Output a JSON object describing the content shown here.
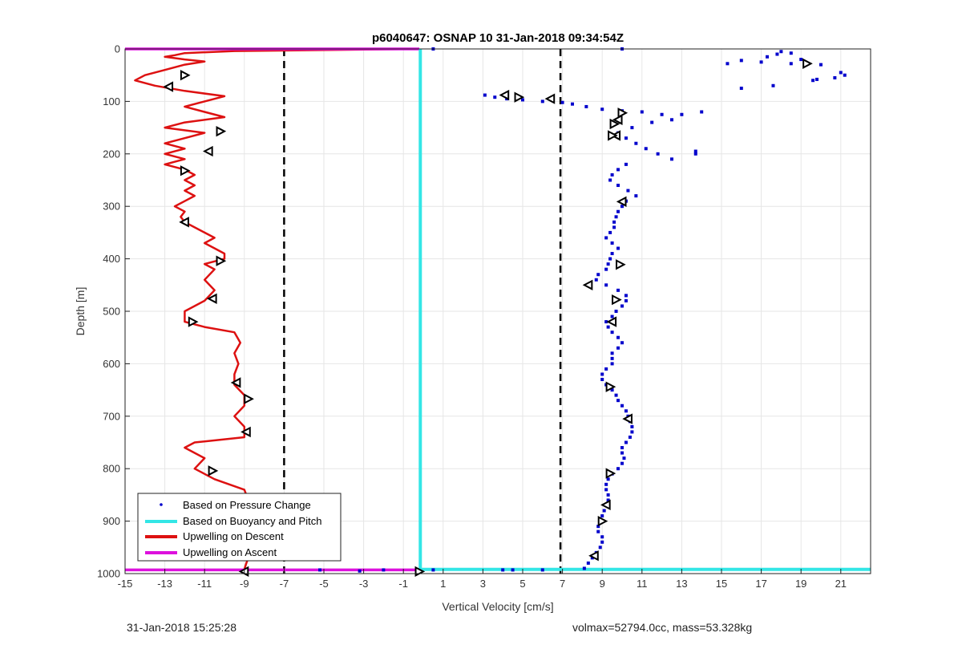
{
  "footer": {
    "left": "31-Jan-2018 15:25:28",
    "right": "volmax=52794.0cc, mass=53.328kg"
  },
  "chart_data": {
    "type": "scatter",
    "title": "p6040647: OSNAP 10 31-Jan-2018 09:34:54Z",
    "xlabel": "Vertical Velocity [cm/s]",
    "ylabel": "Depth [m]",
    "xlim": [
      -15,
      22.5
    ],
    "ylim": [
      1000,
      0
    ],
    "y_reversed": true,
    "grid": true,
    "xticks": [
      -15,
      -13,
      -11,
      -9,
      -7,
      -5,
      -3,
      -1,
      1,
      3,
      5,
      7,
      9,
      11,
      13,
      15,
      17,
      19,
      21
    ],
    "yticks": [
      0,
      100,
      200,
      300,
      400,
      500,
      600,
      700,
      800,
      900,
      1000
    ],
    "legend_position": "bottom-left",
    "legend": [
      {
        "label": "Based on Pressure Change",
        "color": "#0000cc",
        "style": "dot"
      },
      {
        "label": "Based on Buoyancy and Pitch",
        "color": "#33e6e6",
        "style": "line"
      },
      {
        "label": "Upwelling on Descent",
        "color": "#dd1111",
        "style": "line"
      },
      {
        "label": "Upwelling on Ascent",
        "color": "#dd11dd",
        "style": "line"
      }
    ],
    "reference_lines_x": [
      -7,
      6.9
    ],
    "series": [
      {
        "name": "Upwelling on Descent",
        "color": "#dd1111",
        "points": [
          [
            -0.2,
            0
          ],
          [
            -9.5,
            4
          ],
          [
            -12,
            8
          ],
          [
            -12.5,
            12
          ],
          [
            -13,
            15
          ],
          [
            -12,
            20
          ],
          [
            -11,
            24
          ],
          [
            -12,
            30
          ],
          [
            -13,
            40
          ],
          [
            -14,
            50
          ],
          [
            -14.5,
            60
          ],
          [
            -13.5,
            70
          ],
          [
            -12,
            80
          ],
          [
            -10,
            90
          ],
          [
            -11,
            100
          ],
          [
            -12,
            110
          ],
          [
            -11,
            120
          ],
          [
            -10,
            130
          ],
          [
            -12,
            140
          ],
          [
            -13,
            150
          ],
          [
            -11,
            160
          ],
          [
            -12,
            170
          ],
          [
            -13,
            180
          ],
          [
            -12,
            190
          ],
          [
            -13,
            200
          ],
          [
            -12,
            210
          ],
          [
            -13,
            220
          ],
          [
            -12,
            230
          ],
          [
            -11.5,
            240
          ],
          [
            -12,
            250
          ],
          [
            -11.5,
            260
          ],
          [
            -12,
            270
          ],
          [
            -11.5,
            280
          ],
          [
            -12,
            290
          ],
          [
            -12.5,
            300
          ],
          [
            -12,
            310
          ],
          [
            -12.2,
            320
          ],
          [
            -12,
            330
          ],
          [
            -11.5,
            340
          ],
          [
            -11,
            350
          ],
          [
            -10.5,
            360
          ],
          [
            -11,
            370
          ],
          [
            -10.5,
            380
          ],
          [
            -10,
            390
          ],
          [
            -10,
            400
          ],
          [
            -11,
            410
          ],
          [
            -10.5,
            420
          ],
          [
            -11,
            440
          ],
          [
            -10.5,
            460
          ],
          [
            -11,
            480
          ],
          [
            -12,
            500
          ],
          [
            -12,
            520
          ],
          [
            -11,
            530
          ],
          [
            -9.5,
            540
          ],
          [
            -9.2,
            560
          ],
          [
            -9.5,
            580
          ],
          [
            -9.3,
            600
          ],
          [
            -9.5,
            620
          ],
          [
            -9.5,
            640
          ],
          [
            -9,
            660
          ],
          [
            -9,
            680
          ],
          [
            -9.5,
            700
          ],
          [
            -9,
            720
          ],
          [
            -9,
            740
          ],
          [
            -11.5,
            750
          ],
          [
            -12,
            760
          ],
          [
            -11,
            780
          ],
          [
            -11.5,
            800
          ],
          [
            -10.5,
            820
          ],
          [
            -9,
            840
          ],
          [
            -8.8,
            860
          ],
          [
            -8.8,
            880
          ],
          [
            -8.7,
            900
          ],
          [
            -8.6,
            920
          ],
          [
            -8.6,
            940
          ],
          [
            -8.7,
            960
          ],
          [
            -8.9,
            980
          ],
          [
            -9,
            992
          ]
        ],
        "markers": [
          [
            -12,
            50
          ],
          [
            -12.8,
            72
          ],
          [
            -10.2,
            157
          ],
          [
            -10.8,
            195
          ],
          [
            -12,
            232
          ],
          [
            -12,
            330
          ],
          [
            -10.2,
            404
          ],
          [
            -10.6,
            476
          ],
          [
            -11.6,
            520
          ],
          [
            -9.4,
            636
          ],
          [
            -8.8,
            667
          ],
          [
            -8.9,
            730
          ],
          [
            -10.6,
            804
          ],
          [
            -9,
            996
          ]
        ]
      },
      {
        "name": "Based on Pressure Change",
        "color": "#0000cc",
        "points": [
          [
            0.5,
            0
          ],
          [
            10,
            0
          ],
          [
            18,
            5
          ],
          [
            18.5,
            8
          ],
          [
            17.8,
            10
          ],
          [
            17.3,
            15
          ],
          [
            19,
            20
          ],
          [
            16,
            22
          ],
          [
            17,
            25
          ],
          [
            18.5,
            28
          ],
          [
            20,
            30
          ],
          [
            21.2,
            50
          ],
          [
            21,
            45
          ],
          [
            20.7,
            55
          ],
          [
            19.8,
            58
          ],
          [
            19.6,
            60
          ],
          [
            15.3,
            28
          ],
          [
            16,
            75
          ],
          [
            17.6,
            70
          ],
          [
            3.1,
            88
          ],
          [
            3.6,
            92
          ],
          [
            4.2,
            95
          ],
          [
            5,
            97
          ],
          [
            6,
            100
          ],
          [
            7,
            102
          ],
          [
            7.5,
            105
          ],
          [
            8.2,
            110
          ],
          [
            9,
            115
          ],
          [
            10,
            118
          ],
          [
            11,
            120
          ],
          [
            12,
            125
          ],
          [
            13,
            125
          ],
          [
            14,
            120
          ],
          [
            12.5,
            135
          ],
          [
            11.5,
            140
          ],
          [
            10.5,
            150
          ],
          [
            9.8,
            160
          ],
          [
            10.2,
            170
          ],
          [
            10.7,
            180
          ],
          [
            11.2,
            190
          ],
          [
            11.8,
            200
          ],
          [
            12.5,
            210
          ],
          [
            13.7,
            195
          ],
          [
            13.7,
            200
          ],
          [
            10.2,
            220
          ],
          [
            9.8,
            230
          ],
          [
            9.5,
            240
          ],
          [
            9.4,
            250
          ],
          [
            9.8,
            260
          ],
          [
            10.3,
            270
          ],
          [
            10.7,
            280
          ],
          [
            10.2,
            290
          ],
          [
            10,
            300
          ],
          [
            9.8,
            310
          ],
          [
            9.7,
            320
          ],
          [
            9.6,
            330
          ],
          [
            9.6,
            340
          ],
          [
            9.4,
            350
          ],
          [
            9.2,
            360
          ],
          [
            9.5,
            370
          ],
          [
            9.8,
            380
          ],
          [
            9.5,
            390
          ],
          [
            9.4,
            400
          ],
          [
            9.3,
            410
          ],
          [
            9.2,
            420
          ],
          [
            8.8,
            430
          ],
          [
            8.7,
            440
          ],
          [
            9.2,
            450
          ],
          [
            9.8,
            460
          ],
          [
            10.2,
            470
          ],
          [
            10.2,
            480
          ],
          [
            10,
            490
          ],
          [
            9.7,
            500
          ],
          [
            9.5,
            510
          ],
          [
            9.2,
            520
          ],
          [
            9.3,
            530
          ],
          [
            9.5,
            540
          ],
          [
            9.8,
            550
          ],
          [
            10,
            560
          ],
          [
            9.8,
            570
          ],
          [
            9.5,
            580
          ],
          [
            9.5,
            590
          ],
          [
            9.5,
            600
          ],
          [
            9.2,
            610
          ],
          [
            9,
            620
          ],
          [
            9,
            630
          ],
          [
            9.2,
            640
          ],
          [
            9.5,
            650
          ],
          [
            9.7,
            660
          ],
          [
            9.8,
            670
          ],
          [
            10,
            680
          ],
          [
            10.2,
            690
          ],
          [
            10.3,
            700
          ],
          [
            10.4,
            710
          ],
          [
            10.5,
            720
          ],
          [
            10.5,
            730
          ],
          [
            10.4,
            740
          ],
          [
            10.2,
            750
          ],
          [
            10,
            760
          ],
          [
            10,
            770
          ],
          [
            10.1,
            780
          ],
          [
            10,
            790
          ],
          [
            9.8,
            800
          ],
          [
            9.5,
            810
          ],
          [
            9.3,
            820
          ],
          [
            9.2,
            830
          ],
          [
            9.2,
            840
          ],
          [
            9.3,
            850
          ],
          [
            9.3,
            860
          ],
          [
            9.2,
            870
          ],
          [
            9.1,
            880
          ],
          [
            9,
            890
          ],
          [
            8.9,
            900
          ],
          [
            8.8,
            910
          ],
          [
            8.8,
            920
          ],
          [
            9,
            930
          ],
          [
            9,
            940
          ],
          [
            8.9,
            950
          ],
          [
            8.7,
            960
          ],
          [
            8.5,
            970
          ],
          [
            8.3,
            980
          ],
          [
            8.1,
            990
          ],
          [
            -3.2,
            995
          ],
          [
            -2,
            993
          ],
          [
            -5.2,
            993
          ],
          [
            4,
            993
          ],
          [
            4.5,
            993
          ],
          [
            6,
            993
          ],
          [
            0.5,
            993
          ]
        ],
        "markers": [
          [
            19.3,
            28
          ],
          [
            4.1,
            88
          ],
          [
            4.8,
            92
          ],
          [
            6.4,
            95
          ],
          [
            10,
            122
          ],
          [
            9.8,
            135
          ],
          [
            9.6,
            143
          ],
          [
            9.7,
            165
          ],
          [
            9.5,
            165
          ],
          [
            10,
            291
          ],
          [
            9.9,
            411
          ],
          [
            8.3,
            450
          ],
          [
            9.7,
            478
          ],
          [
            9.5,
            520
          ],
          [
            9.4,
            644
          ],
          [
            10.3,
            705
          ],
          [
            9.4,
            809
          ],
          [
            9.2,
            869
          ],
          [
            9,
            900
          ],
          [
            8.6,
            966
          ],
          [
            -0.2,
            996
          ]
        ]
      },
      {
        "name": "Based on Buoyancy and Pitch",
        "color": "#33e6e6",
        "points": [
          [
            -0.15,
            0
          ],
          [
            -0.15,
            992
          ],
          [
            22.5,
            992
          ]
        ]
      },
      {
        "name": "Upwelling on Ascent",
        "color": "#dd11dd",
        "points": [
          [
            -15,
            0
          ],
          [
            -0.2,
            0
          ],
          [
            -15,
            993
          ],
          [
            -0.2,
            993
          ]
        ]
      }
    ]
  }
}
